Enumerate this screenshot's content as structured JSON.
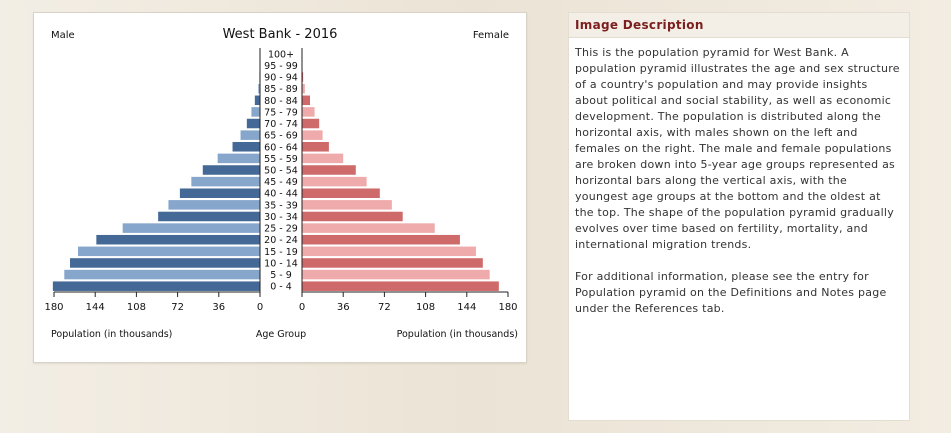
{
  "colors": {
    "male_dark": "#456996",
    "male_light": "#86a6cc",
    "female_dark": "#cf6a6a",
    "female_light": "#efabab",
    "desc_title": "#7a1e1e"
  },
  "chart_data": {
    "type": "bar",
    "orientation": "horizontal-pyramid",
    "title": "West Bank - 2016",
    "left_label": "Male",
    "right_label": "Female",
    "center_axis_label": "Age Group",
    "left_axis_label": "Population (in thousands)",
    "right_axis_label": "Population (in thousands)",
    "left_ticks": [
      "180",
      "144",
      "108",
      "72",
      "36",
      "0"
    ],
    "right_ticks": [
      "0",
      "36",
      "72",
      "108",
      "144",
      "180"
    ],
    "xlim": [
      0,
      180
    ],
    "categories": [
      "100+",
      "95 - 99",
      "90 - 94",
      "85 - 89",
      "80 - 84",
      "75 - 79",
      "70 - 74",
      "65 - 69",
      "60 - 64",
      "55 - 59",
      "50 - 54",
      "45 - 49",
      "40 - 44",
      "35 - 39",
      "30 - 34",
      "25 - 29",
      "20 - 24",
      "15 - 19",
      "10 - 14",
      "5 - 9",
      "0 - 4"
    ],
    "series": [
      {
        "name": "Male",
        "values": [
          0,
          0,
          0.5,
          1.5,
          4.5,
          7.5,
          11.5,
          17,
          24,
          37,
          50,
          60,
          70,
          80,
          89,
          120,
          143,
          159,
          166,
          171,
          181
        ]
      },
      {
        "name": "Female",
        "values": [
          0,
          0.3,
          1,
          2.5,
          7,
          11,
          15,
          18,
          23.5,
          36,
          47,
          56.5,
          68,
          78.5,
          88,
          116,
          138,
          152,
          158,
          164,
          172
        ]
      }
    ]
  },
  "description": {
    "title": "Image Description",
    "paragraph1": "This is the population pyramid for West Bank. A population pyramid illustrates the age and sex structure of a country's population and may provide insights about political and social stability, as well as economic development. The population is distributed along the horizontal axis, with males shown on the left and females on the right. The male and female populations are broken down into 5-year age groups represented as horizontal bars along the vertical axis, with the youngest age groups at the bottom and the oldest at the top. The shape of the population pyramid gradually evolves over time based on fertility, mortality, and international migration trends.",
    "paragraph2": "For additional information, please see the entry for Population pyramid on the Definitions and Notes page under the References tab."
  }
}
